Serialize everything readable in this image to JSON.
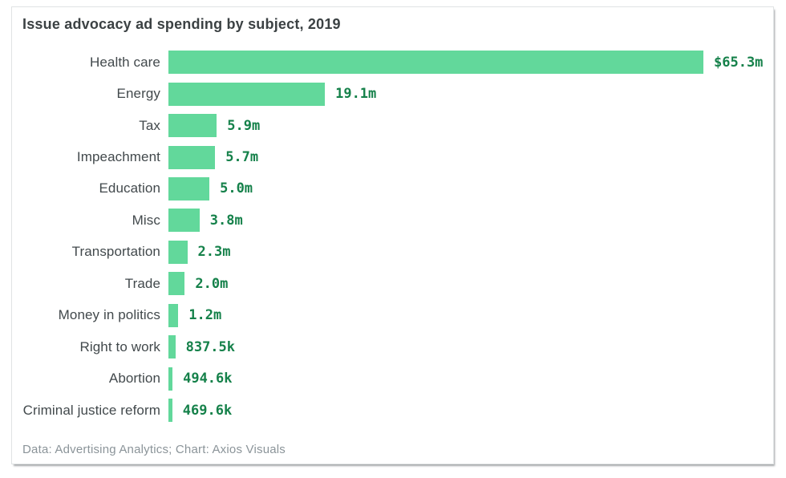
{
  "page": {
    "title": "Issue advocacy ad spending by subject, 2019",
    "footer": "Data: Advertising Analytics; Chart: Axios Visuals"
  },
  "colors": {
    "bar": "#62d89b",
    "value_text": "#15814a",
    "title_text": "#3b4143",
    "label_text": "#42494c",
    "footer_text": "#8b9499"
  },
  "chart_data": {
    "type": "bar",
    "orientation": "horizontal",
    "title": "Issue advocacy ad spending by subject, 2019",
    "categories": [
      "Health care",
      "Energy",
      "Tax",
      "Impeachment",
      "Education",
      "Misc",
      "Transportation",
      "Trade",
      "Money in politics",
      "Right to work",
      "Abortion",
      "Criminal justice reform"
    ],
    "values_usd": [
      65300000,
      19100000,
      5900000,
      5700000,
      5000000,
      3800000,
      2300000,
      2000000,
      1200000,
      837500,
      494600,
      469600
    ],
    "value_labels": [
      "$65.3m",
      "19.1m",
      "5.9m",
      "5.7m",
      "5.0m",
      "3.8m",
      "2.3m",
      "2.0m",
      "1.2m",
      "837.5k",
      "494.6k",
      "469.6k"
    ],
    "xlim": [
      0,
      65300000
    ],
    "grid": false,
    "legend": false,
    "axis_labels": false,
    "source": "Data: Advertising Analytics; Chart: Axios Visuals"
  }
}
